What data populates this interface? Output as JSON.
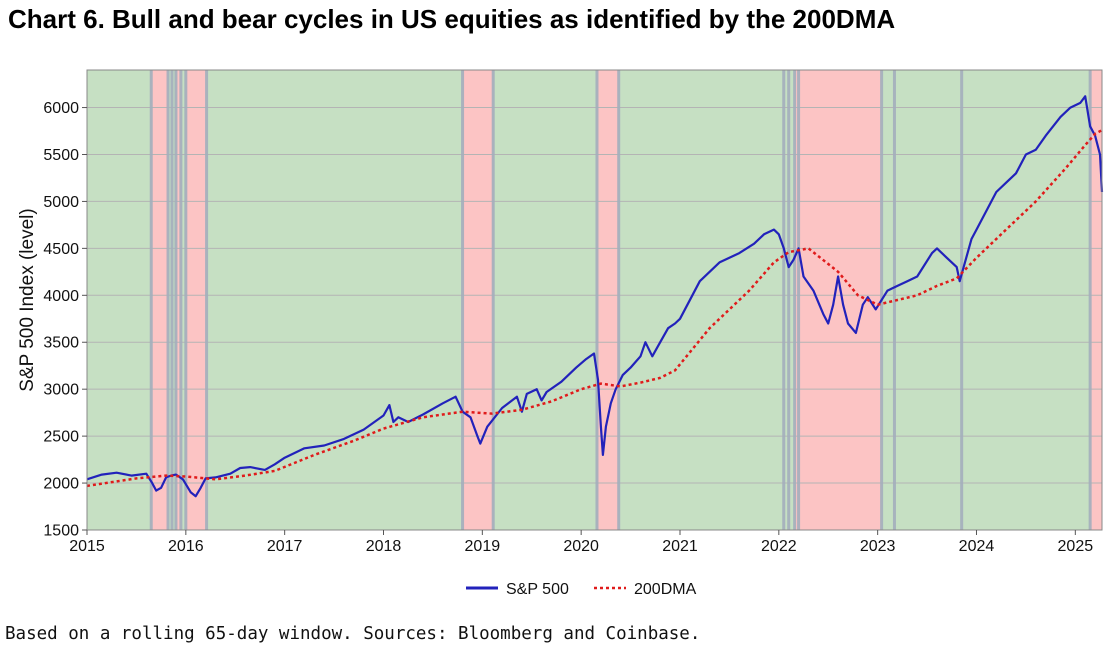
{
  "title": "Chart 6. Bull and bear cycles in US equities as identified by the 200DMA",
  "footnote": "Based on a rolling 65-day window. Sources: Bloomberg and Coinbase.",
  "colors": {
    "bull": "#c6e0c3",
    "bear": "#fcc4c4",
    "transition": "#a3aebd",
    "sp500": "#2222bb",
    "dma": "#e01b1b",
    "grid": "#b4b4b4"
  },
  "chart_data": {
    "type": "line",
    "title": "Chart 6. Bull and bear cycles in US equities as identified by the 200DMA",
    "xlabel": "",
    "ylabel": "S&P 500 Index (level)",
    "xlim": [
      2015.0,
      2025.27
    ],
    "ylim": [
      1500,
      6400
    ],
    "x_ticks": [
      "2015",
      "2016",
      "2017",
      "2018",
      "2019",
      "2020",
      "2021",
      "2022",
      "2023",
      "2024",
      "2025"
    ],
    "y_ticks": [
      "1500",
      "2000",
      "2500",
      "3000",
      "3500",
      "4000",
      "4500",
      "5000",
      "5500",
      "6000"
    ],
    "legend": {
      "position": "bottom",
      "entries": [
        "S&P 500",
        "200DMA"
      ]
    },
    "bear_regimes": [
      [
        2015.65,
        2015.82
      ],
      [
        2015.9,
        2015.95
      ],
      [
        2016.0,
        2016.21
      ],
      [
        2018.8,
        2019.11
      ],
      [
        2020.16,
        2020.38
      ],
      [
        2022.16,
        2023.04
      ],
      [
        2025.15,
        2025.27
      ]
    ],
    "transition_markers": [
      2015.65,
      2015.82,
      2015.86,
      2015.9,
      2015.95,
      2016.0,
      2016.21,
      2018.8,
      2019.11,
      2020.16,
      2020.38,
      2022.05,
      2022.1,
      2022.16,
      2022.2,
      2023.04,
      2023.17,
      2023.85,
      2025.15
    ],
    "series": [
      {
        "name": "S&P 500",
        "style": "solid",
        "x": [
          2015.0,
          2015.15,
          2015.3,
          2015.45,
          2015.6,
          2015.66,
          2015.7,
          2015.75,
          2015.8,
          2015.85,
          2015.9,
          2015.97,
          2016.05,
          2016.1,
          2016.15,
          2016.2,
          2016.3,
          2016.45,
          2016.55,
          2016.65,
          2016.8,
          2016.9,
          2017.0,
          2017.2,
          2017.4,
          2017.6,
          2017.8,
          2018.0,
          2018.06,
          2018.1,
          2018.15,
          2018.25,
          2018.4,
          2018.6,
          2018.73,
          2018.8,
          2018.88,
          2018.95,
          2018.98,
          2019.05,
          2019.2,
          2019.35,
          2019.4,
          2019.45,
          2019.55,
          2019.6,
          2019.65,
          2019.8,
          2019.95,
          2020.05,
          2020.13,
          2020.17,
          2020.2,
          2020.22,
          2020.25,
          2020.3,
          2020.35,
          2020.42,
          2020.5,
          2020.6,
          2020.65,
          2020.72,
          2020.8,
          2020.88,
          2020.95,
          2021.0,
          2021.2,
          2021.4,
          2021.6,
          2021.75,
          2021.85,
          2021.95,
          2022.0,
          2022.05,
          2022.1,
          2022.15,
          2022.2,
          2022.25,
          2022.35,
          2022.45,
          2022.5,
          2022.55,
          2022.6,
          2022.65,
          2022.7,
          2022.78,
          2022.85,
          2022.9,
          2022.98,
          2023.1,
          2023.2,
          2023.3,
          2023.4,
          2023.55,
          2023.6,
          2023.7,
          2023.8,
          2023.83,
          2023.95,
          2024.0,
          2024.2,
          2024.3,
          2024.4,
          2024.5,
          2024.6,
          2024.7,
          2024.85,
          2024.95,
          2025.05,
          2025.1,
          2025.15,
          2025.2,
          2025.25,
          2025.27
        ],
        "values": [
          2040,
          2090,
          2110,
          2080,
          2100,
          2000,
          1920,
          1950,
          2060,
          2080,
          2090,
          2040,
          1900,
          1860,
          1950,
          2050,
          2060,
          2100,
          2160,
          2170,
          2140,
          2200,
          2270,
          2370,
          2400,
          2470,
          2570,
          2720,
          2830,
          2650,
          2700,
          2650,
          2730,
          2850,
          2920,
          2760,
          2700,
          2500,
          2420,
          2600,
          2800,
          2920,
          2760,
          2950,
          3000,
          2880,
          2970,
          3080,
          3230,
          3320,
          3380,
          3100,
          2600,
          2300,
          2600,
          2850,
          3000,
          3150,
          3230,
          3350,
          3500,
          3350,
          3500,
          3650,
          3700,
          3750,
          4150,
          4350,
          4450,
          4550,
          4650,
          4700,
          4650,
          4500,
          4300,
          4380,
          4500,
          4200,
          4050,
          3800,
          3700,
          3900,
          4200,
          3900,
          3700,
          3600,
          3900,
          3980,
          3850,
          4050,
          4100,
          4150,
          4200,
          4450,
          4500,
          4400,
          4300,
          4150,
          4600,
          4700,
          5100,
          5200,
          5300,
          5500,
          5550,
          5700,
          5900,
          6000,
          6050,
          6120,
          5800,
          5700,
          5500,
          5100
        ],
        "color": "#2222bb"
      },
      {
        "name": "200DMA",
        "style": "dotted",
        "x": [
          2015.0,
          2015.5,
          2015.8,
          2016.0,
          2016.3,
          2016.6,
          2016.9,
          2017.3,
          2017.7,
          2018.0,
          2018.4,
          2018.8,
          2018.95,
          2019.1,
          2019.4,
          2019.7,
          2020.0,
          2020.2,
          2020.4,
          2020.6,
          2020.8,
          2020.95,
          2021.3,
          2021.7,
          2021.95,
          2022.1,
          2022.3,
          2022.6,
          2022.8,
          2023.0,
          2023.2,
          2023.4,
          2023.6,
          2023.8,
          2024.0,
          2024.3,
          2024.6,
          2024.9,
          2025.1,
          2025.2,
          2025.27
        ],
        "values": [
          1970,
          2050,
          2080,
          2070,
          2040,
          2080,
          2130,
          2300,
          2450,
          2580,
          2700,
          2760,
          2750,
          2740,
          2780,
          2870,
          3000,
          3060,
          3030,
          3070,
          3120,
          3200,
          3650,
          4050,
          4350,
          4460,
          4500,
          4250,
          4000,
          3900,
          3950,
          4000,
          4100,
          4180,
          4400,
          4700,
          5000,
          5350,
          5600,
          5720,
          5760
        ],
        "color": "#e01b1b"
      }
    ]
  }
}
